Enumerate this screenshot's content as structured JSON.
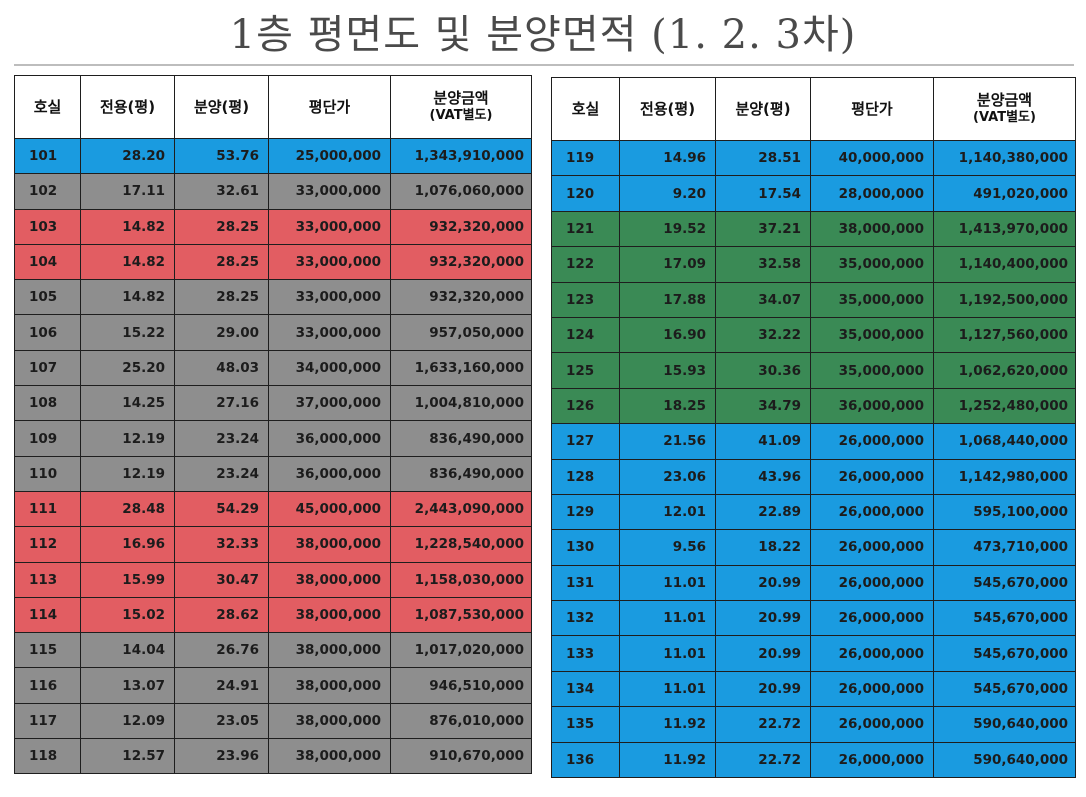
{
  "title": "1층 평면도 및 분양면적 (1. 2. 3차)",
  "colors": {
    "blue": "#1a9be0",
    "gray": "#8e8e8e",
    "red": "#e25d62",
    "green": "#3a8a55"
  },
  "headers": {
    "unit": "호실",
    "exclusive": "전용(평)",
    "sale": "분양(평)",
    "unit_price": "평단가",
    "sale_price": "분양금액",
    "sale_price_note": "(VAT별도)"
  },
  "left_table": {
    "rows": [
      {
        "unit": "101",
        "exclusive": "28.20",
        "sale": "53.76",
        "unit_price": "25,000,000",
        "sale_price": "1,343,910,000",
        "color": "blue"
      },
      {
        "unit": "102",
        "exclusive": "17.11",
        "sale": "32.61",
        "unit_price": "33,000,000",
        "sale_price": "1,076,060,000",
        "color": "gray"
      },
      {
        "unit": "103",
        "exclusive": "14.82",
        "sale": "28.25",
        "unit_price": "33,000,000",
        "sale_price": "932,320,000",
        "color": "red"
      },
      {
        "unit": "104",
        "exclusive": "14.82",
        "sale": "28.25",
        "unit_price": "33,000,000",
        "sale_price": "932,320,000",
        "color": "red"
      },
      {
        "unit": "105",
        "exclusive": "14.82",
        "sale": "28.25",
        "unit_price": "33,000,000",
        "sale_price": "932,320,000",
        "color": "gray"
      },
      {
        "unit": "106",
        "exclusive": "15.22",
        "sale": "29.00",
        "unit_price": "33,000,000",
        "sale_price": "957,050,000",
        "color": "gray"
      },
      {
        "unit": "107",
        "exclusive": "25.20",
        "sale": "48.03",
        "unit_price": "34,000,000",
        "sale_price": "1,633,160,000",
        "color": "gray"
      },
      {
        "unit": "108",
        "exclusive": "14.25",
        "sale": "27.16",
        "unit_price": "37,000,000",
        "sale_price": "1,004,810,000",
        "color": "gray"
      },
      {
        "unit": "109",
        "exclusive": "12.19",
        "sale": "23.24",
        "unit_price": "36,000,000",
        "sale_price": "836,490,000",
        "color": "gray"
      },
      {
        "unit": "110",
        "exclusive": "12.19",
        "sale": "23.24",
        "unit_price": "36,000,000",
        "sale_price": "836,490,000",
        "color": "gray"
      },
      {
        "unit": "111",
        "exclusive": "28.48",
        "sale": "54.29",
        "unit_price": "45,000,000",
        "sale_price": "2,443,090,000",
        "color": "red"
      },
      {
        "unit": "112",
        "exclusive": "16.96",
        "sale": "32.33",
        "unit_price": "38,000,000",
        "sale_price": "1,228,540,000",
        "color": "red"
      },
      {
        "unit": "113",
        "exclusive": "15.99",
        "sale": "30.47",
        "unit_price": "38,000,000",
        "sale_price": "1,158,030,000",
        "color": "red"
      },
      {
        "unit": "114",
        "exclusive": "15.02",
        "sale": "28.62",
        "unit_price": "38,000,000",
        "sale_price": "1,087,530,000",
        "color": "red"
      },
      {
        "unit": "115",
        "exclusive": "14.04",
        "sale": "26.76",
        "unit_price": "38,000,000",
        "sale_price": "1,017,020,000",
        "color": "gray"
      },
      {
        "unit": "116",
        "exclusive": "13.07",
        "sale": "24.91",
        "unit_price": "38,000,000",
        "sale_price": "946,510,000",
        "color": "gray"
      },
      {
        "unit": "117",
        "exclusive": "12.09",
        "sale": "23.05",
        "unit_price": "38,000,000",
        "sale_price": "876,010,000",
        "color": "gray"
      },
      {
        "unit": "118",
        "exclusive": "12.57",
        "sale": "23.96",
        "unit_price": "38,000,000",
        "sale_price": "910,670,000",
        "color": "gray"
      }
    ]
  },
  "right_table": {
    "rows": [
      {
        "unit": "119",
        "exclusive": "14.96",
        "sale": "28.51",
        "unit_price": "40,000,000",
        "sale_price": "1,140,380,000",
        "color": "blue"
      },
      {
        "unit": "120",
        "exclusive": "9.20",
        "sale": "17.54",
        "unit_price": "28,000,000",
        "sale_price": "491,020,000",
        "color": "blue"
      },
      {
        "unit": "121",
        "exclusive": "19.52",
        "sale": "37.21",
        "unit_price": "38,000,000",
        "sale_price": "1,413,970,000",
        "color": "green"
      },
      {
        "unit": "122",
        "exclusive": "17.09",
        "sale": "32.58",
        "unit_price": "35,000,000",
        "sale_price": "1,140,400,000",
        "color": "green"
      },
      {
        "unit": "123",
        "exclusive": "17.88",
        "sale": "34.07",
        "unit_price": "35,000,000",
        "sale_price": "1,192,500,000",
        "color": "green"
      },
      {
        "unit": "124",
        "exclusive": "16.90",
        "sale": "32.22",
        "unit_price": "35,000,000",
        "sale_price": "1,127,560,000",
        "color": "green"
      },
      {
        "unit": "125",
        "exclusive": "15.93",
        "sale": "30.36",
        "unit_price": "35,000,000",
        "sale_price": "1,062,620,000",
        "color": "green"
      },
      {
        "unit": "126",
        "exclusive": "18.25",
        "sale": "34.79",
        "unit_price": "36,000,000",
        "sale_price": "1,252,480,000",
        "color": "green"
      },
      {
        "unit": "127",
        "exclusive": "21.56",
        "sale": "41.09",
        "unit_price": "26,000,000",
        "sale_price": "1,068,440,000",
        "color": "blue"
      },
      {
        "unit": "128",
        "exclusive": "23.06",
        "sale": "43.96",
        "unit_price": "26,000,000",
        "sale_price": "1,142,980,000",
        "color": "blue"
      },
      {
        "unit": "129",
        "exclusive": "12.01",
        "sale": "22.89",
        "unit_price": "26,000,000",
        "sale_price": "595,100,000",
        "color": "blue"
      },
      {
        "unit": "130",
        "exclusive": "9.56",
        "sale": "18.22",
        "unit_price": "26,000,000",
        "sale_price": "473,710,000",
        "color": "blue"
      },
      {
        "unit": "131",
        "exclusive": "11.01",
        "sale": "20.99",
        "unit_price": "26,000,000",
        "sale_price": "545,670,000",
        "color": "blue"
      },
      {
        "unit": "132",
        "exclusive": "11.01",
        "sale": "20.99",
        "unit_price": "26,000,000",
        "sale_price": "545,670,000",
        "color": "blue"
      },
      {
        "unit": "133",
        "exclusive": "11.01",
        "sale": "20.99",
        "unit_price": "26,000,000",
        "sale_price": "545,670,000",
        "color": "blue"
      },
      {
        "unit": "134",
        "exclusive": "11.01",
        "sale": "20.99",
        "unit_price": "26,000,000",
        "sale_price": "545,670,000",
        "color": "blue"
      },
      {
        "unit": "135",
        "exclusive": "11.92",
        "sale": "22.72",
        "unit_price": "26,000,000",
        "sale_price": "590,640,000",
        "color": "blue"
      },
      {
        "unit": "136",
        "exclusive": "11.92",
        "sale": "22.72",
        "unit_price": "26,000,000",
        "sale_price": "590,640,000",
        "color": "blue"
      }
    ]
  }
}
